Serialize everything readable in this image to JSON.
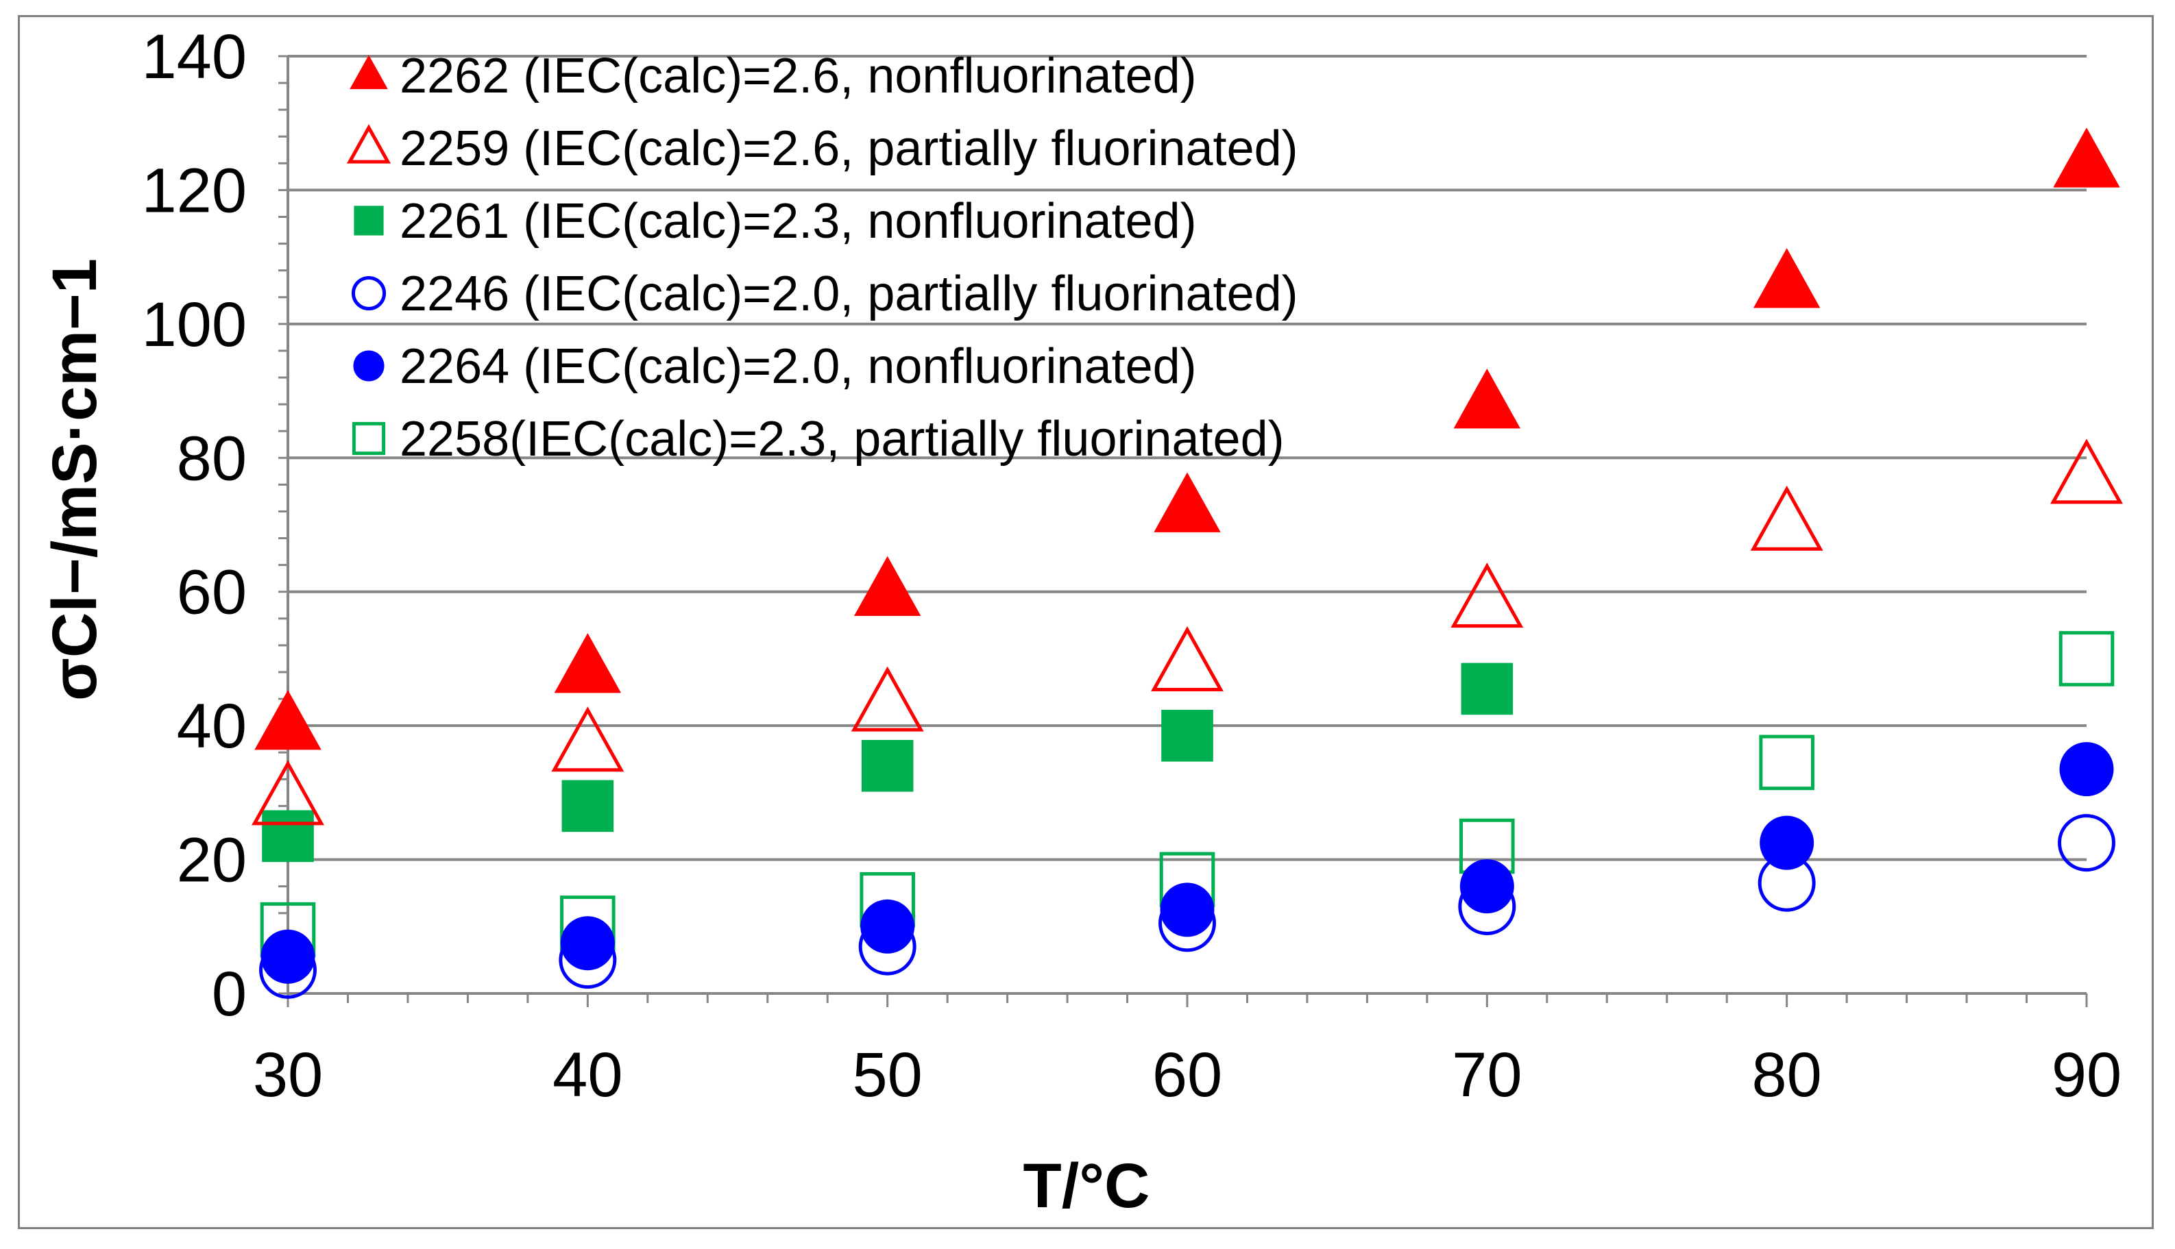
{
  "chart_data": {
    "type": "scatter",
    "title": "",
    "xlabel": "T/°C",
    "ylabel": "σCl−/mS·cm−1",
    "xlim": [
      30,
      90
    ],
    "ylim": [
      0,
      140
    ],
    "x_ticks": [
      "30",
      "40",
      "50",
      "60",
      "70",
      "80",
      "90"
    ],
    "y_ticks": [
      "0",
      "20",
      "40",
      "60",
      "80",
      "100",
      "120",
      "140"
    ],
    "grid": "horizontal",
    "legend_position": "top-left",
    "series": [
      {
        "name": "2262 (IEC(calc)=2.6, nonfluorinated)",
        "marker": "triangle",
        "filled": true,
        "color": "#ff0000",
        "x": [
          30,
          40,
          50,
          60,
          70,
          80,
          90
        ],
        "y": [
          40,
          48.5,
          60,
          72.5,
          88,
          106,
          124
        ]
      },
      {
        "name": "2259 (IEC(calc)=2.6, partially fluorinated)",
        "marker": "triangle",
        "filled": false,
        "color": "#ff0000",
        "x": [
          30,
          40,
          50,
          60,
          70,
          80,
          90
        ],
        "y": [
          29,
          37,
          43,
          49,
          58.5,
          70,
          77
        ]
      },
      {
        "name": "2261 (IEC(calc)=2.3, nonfluorinated)",
        "marker": "square",
        "filled": true,
        "color": "#00b050",
        "x": [
          30,
          40,
          50,
          60,
          70
        ],
        "y": [
          23.5,
          28,
          34,
          38.5,
          45.5
        ]
      },
      {
        "name": "2246 (IEC(calc)=2.0, partially fluorinated)",
        "marker": "circle",
        "filled": false,
        "color": "#0000ff",
        "x": [
          30,
          40,
          50,
          60,
          70,
          80,
          90
        ],
        "y": [
          3.5,
          5,
          7,
          10.5,
          13,
          16.5,
          22.5
        ]
      },
      {
        "name": "2264 (IEC(calc)=2.0, nonfluorinated)",
        "marker": "circle",
        "filled": true,
        "color": "#0000ff",
        "x": [
          30,
          40,
          50,
          60,
          70,
          80,
          90
        ],
        "y": [
          5.5,
          7.5,
          10,
          12.5,
          16,
          22.5,
          33.5
        ]
      },
      {
        "name": "2258(IEC(calc)=2.3, partially fluorinated)",
        "marker": "square",
        "filled": false,
        "color": "#00b050",
        "x": [
          30,
          40,
          50,
          60,
          70,
          80,
          90
        ],
        "y": [
          9.5,
          10.5,
          14,
          17,
          22,
          34.5,
          50
        ]
      }
    ]
  },
  "colors": {
    "gridline": "#868686",
    "axis": "#868686",
    "frame": "#7f7f7f"
  }
}
